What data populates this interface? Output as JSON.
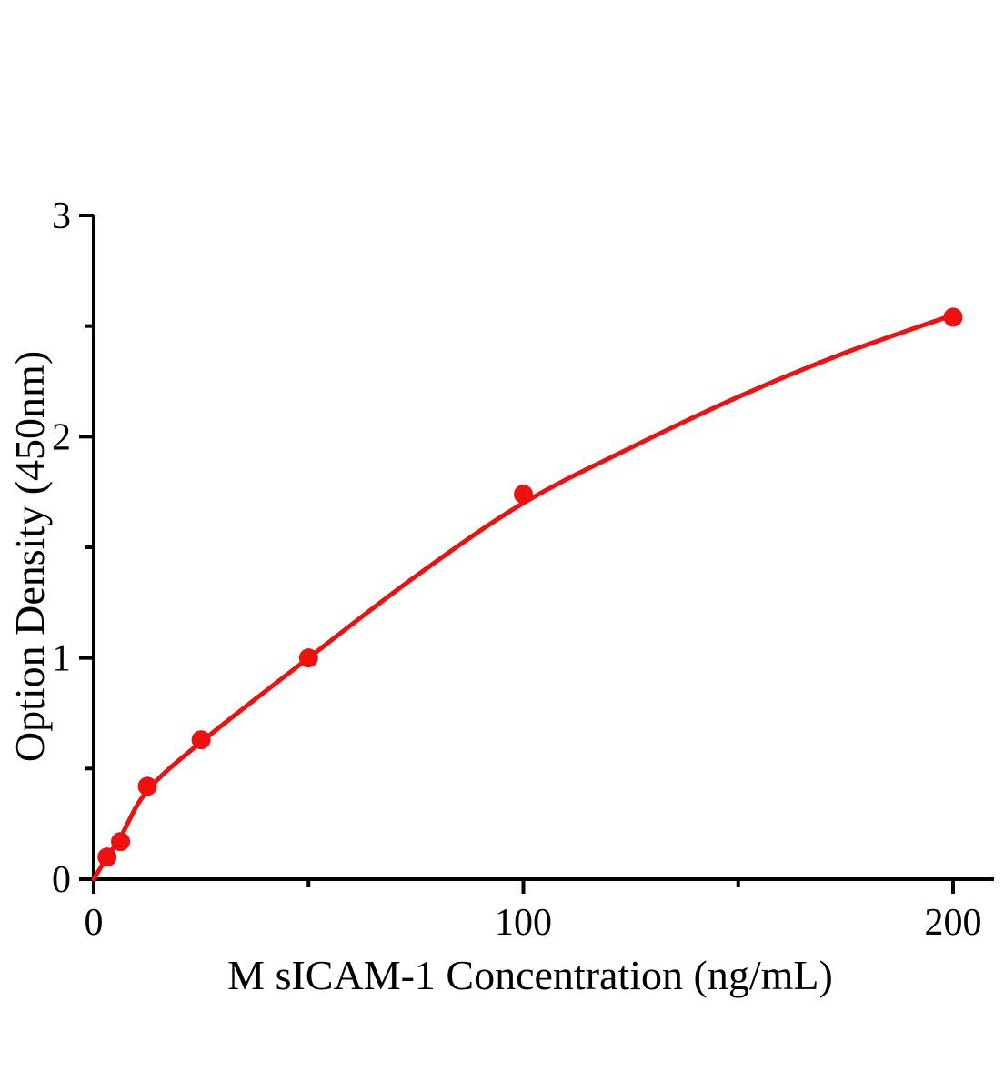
{
  "chart_data": {
    "type": "scatter",
    "title": "",
    "xlabel": "M sICAM-1 Concentration (ng/mL)",
    "ylabel": "Option Density (450nm)",
    "xlim": [
      0,
      200
    ],
    "ylim": [
      0,
      3
    ],
    "grid": false,
    "legend": "none",
    "background": "#ffffff",
    "axis_color": "#000000",
    "accent_color": "#f01010",
    "x_axis": {
      "major_ticks": [
        0,
        100,
        200
      ],
      "major_tick_labels": [
        "0",
        "100",
        "200"
      ],
      "minor_ticks": [
        50,
        150
      ]
    },
    "y_axis": {
      "major_ticks": [
        0,
        1,
        2,
        3
      ],
      "major_tick_labels": [
        "0",
        "1",
        "2",
        "3"
      ],
      "minor_ticks": [
        0.5,
        1.5,
        2.5
      ]
    },
    "series": [
      {
        "name": "standard-points",
        "type": "scatter",
        "marker": "circle",
        "color": "#f01010",
        "points": [
          {
            "x": 3.125,
            "y": 0.1
          },
          {
            "x": 6.25,
            "y": 0.17
          },
          {
            "x": 12.5,
            "y": 0.42
          },
          {
            "x": 25,
            "y": 0.63
          },
          {
            "x": 50,
            "y": 1.0
          },
          {
            "x": 100,
            "y": 1.74
          },
          {
            "x": 200,
            "y": 2.54
          }
        ]
      },
      {
        "name": "fit-curve",
        "type": "line",
        "color": "#f01010",
        "points": [
          {
            "x": 0,
            "y": 0.0
          },
          {
            "x": 3.125,
            "y": 0.1
          },
          {
            "x": 6.25,
            "y": 0.19
          },
          {
            "x": 12.5,
            "y": 0.4
          },
          {
            "x": 25,
            "y": 0.62
          },
          {
            "x": 50,
            "y": 1.0
          },
          {
            "x": 75,
            "y": 1.37
          },
          {
            "x": 100,
            "y": 1.7
          },
          {
            "x": 125,
            "y": 1.95
          },
          {
            "x": 150,
            "y": 2.18
          },
          {
            "x": 175,
            "y": 2.38
          },
          {
            "x": 200,
            "y": 2.55
          }
        ]
      }
    ]
  }
}
